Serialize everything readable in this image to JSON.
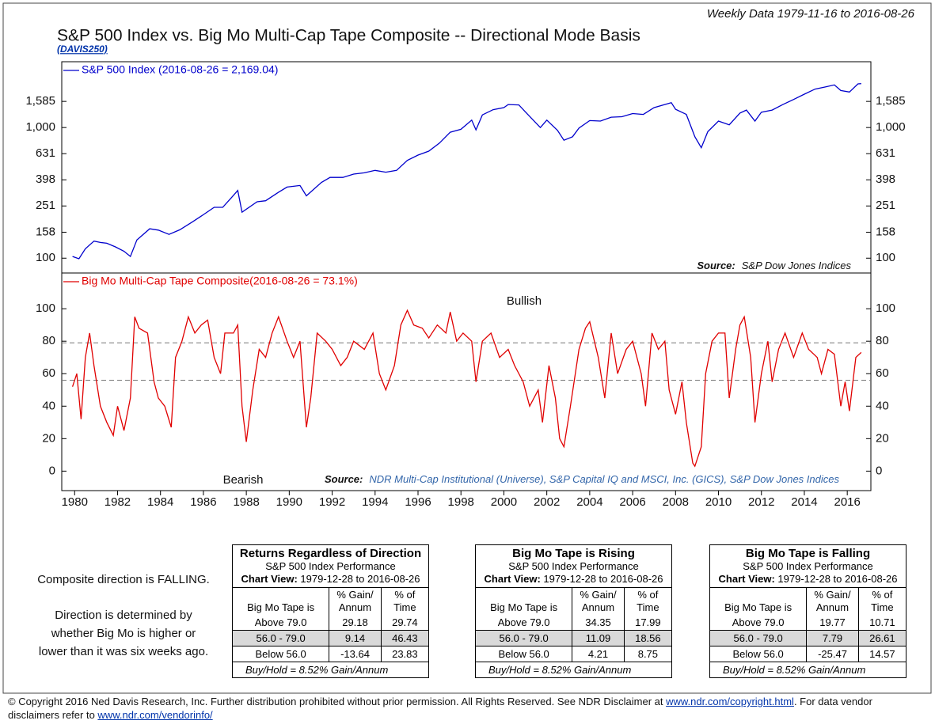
{
  "header": {
    "date_range": "Weekly Data 1979-11-16 to 2016-08-26",
    "title": "S&P 500 Index vs. Big Mo Multi-Cap Tape Composite -- Directional Mode Basis",
    "code": "(DAVIS250)"
  },
  "chart_data": [
    {
      "type": "line",
      "log_scale": true,
      "xlim": [
        1979.4,
        2017.1
      ],
      "ylim": [
        77,
        3190
      ],
      "yticks": [
        100,
        158,
        251,
        398,
        631,
        {
          "value": 1000,
          "label": "1,000"
        },
        {
          "value": 1585,
          "label": "1,585"
        }
      ],
      "x": [
        1979.9,
        1980.2,
        1980.5,
        1980.9,
        1981.2,
        1981.5,
        1981.9,
        1982.3,
        1982.6,
        1982.9,
        1983.5,
        1983.9,
        1984.4,
        1984.9,
        1985.5,
        1985.9,
        1986.5,
        1986.9,
        1987.3,
        1987.6,
        1987.8,
        1988.5,
        1988.9,
        1989.5,
        1989.9,
        1990.5,
        1990.8,
        1991.5,
        1991.9,
        1992.5,
        1993.0,
        1993.5,
        1994.0,
        1994.5,
        1995.0,
        1995.5,
        1996.0,
        1996.5,
        1997.0,
        1997.5,
        1998.0,
        1998.5,
        1998.7,
        1999.0,
        1999.5,
        2000.0,
        2000.2,
        2000.7,
        2001.0,
        2001.7,
        2002.0,
        2002.5,
        2002.8,
        2003.2,
        2003.5,
        2004.0,
        2004.5,
        2005.0,
        2005.5,
        2006.0,
        2006.5,
        2007.0,
        2007.8,
        2008.0,
        2008.5,
        2008.9,
        2009.2,
        2009.5,
        2010.0,
        2010.5,
        2011.0,
        2011.3,
        2011.7,
        2012.0,
        2012.5,
        2013.0,
        2013.5,
        2014.0,
        2014.5,
        2015.0,
        2015.4,
        2015.7,
        2016.1,
        2016.5,
        2016.65
      ],
      "series": [
        {
          "name": "S&P 500 Index (2016-08-26 = 2,169.04)",
          "color": "#0000cc",
          "values": [
            103,
            99,
            118,
            135,
            132,
            130,
            122,
            113,
            103,
            138,
            168,
            164,
            152,
            165,
            190,
            210,
            245,
            245,
            290,
            330,
            225,
            270,
            275,
            320,
            350,
            360,
            300,
            380,
            415,
            415,
            440,
            450,
            470,
            455,
            470,
            560,
            615,
            660,
            760,
            920,
            970,
            1140,
            960,
            1250,
            1370,
            1420,
            1500,
            1490,
            1320,
            1000,
            1140,
            950,
            800,
            850,
            990,
            1130,
            1120,
            1200,
            1210,
            1280,
            1260,
            1420,
            1550,
            1380,
            1260,
            850,
            700,
            930,
            1120,
            1050,
            1290,
            1360,
            1120,
            1310,
            1360,
            1500,
            1640,
            1800,
            1970,
            2050,
            2120,
            1920,
            1870,
            2160,
            2169.04
          ]
        }
      ],
      "source_label": "Source:",
      "source": "S&P Dow Jones Indices"
    },
    {
      "type": "line",
      "xlim": [
        1979.4,
        2017.1
      ],
      "ylim": [
        -12,
        122
      ],
      "yticks": [
        0,
        20,
        40,
        60,
        80,
        100
      ],
      "xticks": [
        1980,
        1982,
        1984,
        1986,
        1988,
        1990,
        1992,
        1994,
        1996,
        1998,
        2000,
        2002,
        2004,
        2006,
        2008,
        2010,
        2012,
        2014,
        2016
      ],
      "reference_lines": [
        79,
        56
      ],
      "x": [
        1979.9,
        1980.1,
        1980.3,
        1980.5,
        1980.7,
        1980.9,
        1981.2,
        1981.5,
        1981.8,
        1982.0,
        1982.3,
        1982.6,
        1982.8,
        1983.0,
        1983.4,
        1983.7,
        1983.9,
        1984.2,
        1984.5,
        1984.7,
        1985.0,
        1985.3,
        1985.6,
        1985.9,
        1986.2,
        1986.5,
        1986.8,
        1987.0,
        1987.4,
        1987.6,
        1987.8,
        1988.0,
        1988.3,
        1988.6,
        1988.9,
        1989.2,
        1989.5,
        1989.9,
        1990.2,
        1990.5,
        1990.8,
        1991.0,
        1991.3,
        1991.7,
        1992.0,
        1992.4,
        1992.7,
        1993.0,
        1993.5,
        1993.9,
        1994.2,
        1994.5,
        1994.9,
        1995.2,
        1995.5,
        1995.8,
        1996.2,
        1996.5,
        1996.9,
        1997.3,
        1997.5,
        1997.8,
        1998.1,
        1998.5,
        1998.7,
        1999.0,
        1999.4,
        1999.8,
        2000.2,
        2000.5,
        2000.9,
        2001.2,
        2001.6,
        2001.8,
        2002.1,
        2002.4,
        2002.6,
        2002.8,
        2003.1,
        2003.5,
        2003.8,
        2004.0,
        2004.4,
        2004.7,
        2005.0,
        2005.3,
        2005.7,
        2006.0,
        2006.4,
        2006.6,
        2006.9,
        2007.2,
        2007.5,
        2007.7,
        2008.0,
        2008.3,
        2008.5,
        2008.8,
        2008.9,
        2009.2,
        2009.4,
        2009.7,
        2010.0,
        2010.3,
        2010.5,
        2010.8,
        2011.0,
        2011.2,
        2011.5,
        2011.7,
        2012.0,
        2012.3,
        2012.5,
        2012.8,
        2013.1,
        2013.5,
        2013.9,
        2014.2,
        2014.6,
        2014.8,
        2015.1,
        2015.4,
        2015.7,
        2015.9,
        2016.1,
        2016.4,
        2016.65
      ],
      "series": [
        {
          "name": "Big Mo Multi-Cap Tape Composite(2016-08-26 = 73.1%)",
          "color": "#e00000",
          "values": [
            52,
            60,
            32,
            70,
            85,
            65,
            40,
            30,
            22,
            40,
            25,
            45,
            95,
            88,
            85,
            55,
            45,
            40,
            27,
            70,
            80,
            95,
            85,
            90,
            93,
            70,
            60,
            85,
            85,
            90,
            40,
            18,
            50,
            75,
            70,
            85,
            95,
            80,
            70,
            80,
            27,
            45,
            85,
            80,
            75,
            65,
            70,
            80,
            75,
            85,
            60,
            50,
            65,
            90,
            99,
            90,
            88,
            82,
            90,
            85,
            98,
            80,
            85,
            80,
            55,
            80,
            85,
            70,
            75,
            65,
            55,
            40,
            50,
            30,
            65,
            45,
            20,
            15,
            40,
            75,
            88,
            92,
            70,
            45,
            85,
            60,
            75,
            80,
            60,
            40,
            85,
            75,
            80,
            50,
            35,
            55,
            30,
            5,
            3,
            15,
            60,
            80,
            85,
            85,
            45,
            75,
            90,
            95,
            70,
            30,
            60,
            80,
            55,
            75,
            85,
            70,
            85,
            75,
            70,
            60,
            75,
            72,
            40,
            55,
            37,
            70,
            73.1
          ]
        }
      ],
      "annotations": [
        "Bullish",
        "Bearish"
      ],
      "source_label": "Source:",
      "source": "NDR Multi-Cap Institutional (Universe), S&P Capital IQ and MSCI, Inc. (GICS), S&P Dow Jones Indices"
    }
  ],
  "notes": {
    "status": "Composite direction is FALLING.",
    "explanation": [
      "Direction is determined by",
      "whether Big Mo is higher or",
      "lower than it was six weeks ago."
    ]
  },
  "tables": [
    {
      "title": "Returns Regardless of Direction",
      "subtitle": "S&P 500 Index Performance",
      "chart_view_label": "Chart View:",
      "chart_view": "1979-12-28 to 2016-08-26",
      "columns": [
        [
          "Big Mo Tape is"
        ],
        [
          "% Gain/",
          "Annum"
        ],
        [
          "% of",
          "Time"
        ]
      ],
      "rows": [
        [
          "Above 79.0",
          29.18,
          29.74
        ],
        [
          "56.0 - 79.0",
          9.14,
          46.43
        ],
        [
          "Below 56.0",
          -13.64,
          23.83
        ]
      ],
      "footer": "Buy/Hold = 8.52% Gain/Annum"
    },
    {
      "title": "Big Mo Tape is Rising",
      "subtitle": "S&P 500 Index Performance",
      "chart_view_label": "Chart View:",
      "chart_view": "1979-12-28 to 2016-08-26",
      "columns": [
        [
          "Big Mo Tape is"
        ],
        [
          "% Gain/",
          "Annum"
        ],
        [
          "% of",
          "Time"
        ]
      ],
      "rows": [
        [
          "Above 79.0",
          34.35,
          17.99
        ],
        [
          "56.0 - 79.0",
          11.09,
          18.56
        ],
        [
          "Below 56.0",
          4.21,
          8.75
        ]
      ],
      "footer": "Buy/Hold = 8.52% Gain/Annum"
    },
    {
      "title": "Big Mo Tape is Falling",
      "subtitle": "S&P 500 Index Performance",
      "chart_view_label": "Chart View:",
      "chart_view": "1979-12-28 to 2016-08-26",
      "columns": [
        [
          "Big Mo Tape is"
        ],
        [
          "% Gain/",
          "Annum"
        ],
        [
          "% of",
          "Time"
        ]
      ],
      "rows": [
        [
          "Above 79.0",
          19.77,
          10.71
        ],
        [
          "56.0 - 79.0",
          7.79,
          26.61
        ],
        [
          "Below 56.0",
          -25.47,
          14.57
        ]
      ],
      "footer": "Buy/Hold = 8.52% Gain/Annum"
    }
  ],
  "footer": {
    "text1": "© Copyright 2016 Ned Davis Research, Inc. Further distribution prohibited without prior permission. All Rights Reserved. See NDR Disclaimer at ",
    "link1": "www.ndr.com/copyright.html",
    "text2": ". For data vendor disclaimers refer to ",
    "link2": "www.ndr.com/vendorinfo/"
  }
}
